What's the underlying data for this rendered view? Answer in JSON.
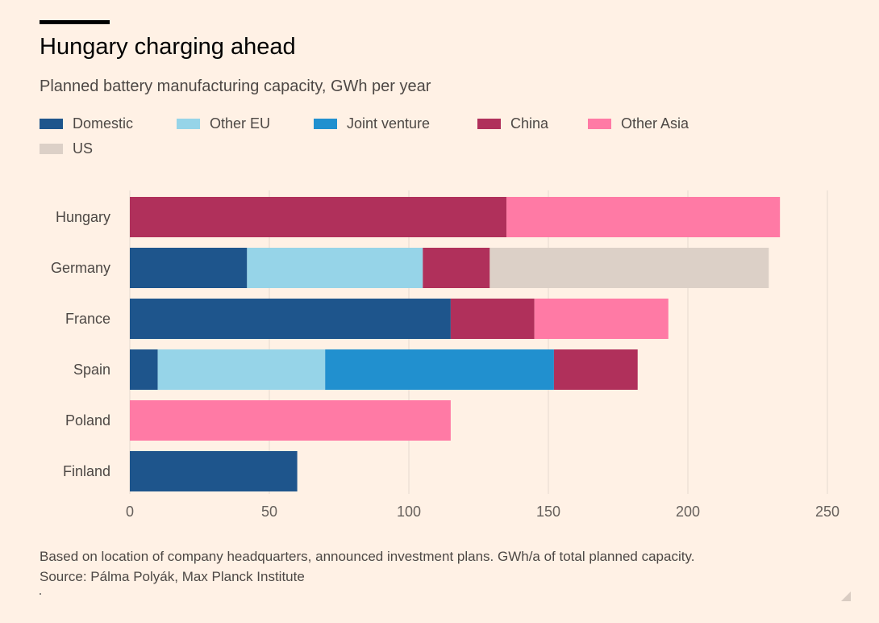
{
  "header": {
    "title": "Hungary charging ahead",
    "subtitle": "Planned battery manufacturing capacity, GWh per year"
  },
  "colors": {
    "background": "#fff1e5",
    "grid": "#e6d9ce",
    "axis_text": "#66605c"
  },
  "chart_data": {
    "type": "bar",
    "orientation": "horizontal",
    "stacked": true,
    "title": "Hungary charging ahead",
    "subtitle": "Planned battery manufacturing capacity, GWh per year",
    "categories": [
      "Hungary",
      "Germany",
      "France",
      "Spain",
      "Poland",
      "Finland"
    ],
    "series": [
      {
        "name": "Domestic",
        "color": "#1e558c",
        "values": [
          0,
          42,
          115,
          10,
          0,
          60
        ]
      },
      {
        "name": "Other EU",
        "color": "#96d4e8",
        "values": [
          0,
          63,
          0,
          60,
          0,
          0
        ]
      },
      {
        "name": "Joint venture",
        "color": "#2190cf",
        "values": [
          0,
          0,
          0,
          82,
          0,
          0
        ]
      },
      {
        "name": "China",
        "color": "#b0305b",
        "values": [
          135,
          24,
          30,
          30,
          0,
          0
        ]
      },
      {
        "name": "Other Asia",
        "color": "#ff7aa5",
        "values": [
          98,
          0,
          48,
          0,
          115,
          0
        ]
      },
      {
        "name": "US",
        "color": "#dcd0c7",
        "values": [
          0,
          100,
          0,
          0,
          0,
          0
        ]
      }
    ],
    "x_ticks": [
      0,
      50,
      100,
      150,
      200,
      250
    ],
    "xlim": [
      0,
      250
    ],
    "xlabel": "",
    "ylabel": "",
    "grid": true,
    "legend_position": "top"
  },
  "footnote": {
    "line1": "Based on location of company headquarters, announced investment plans. GWh/a of total planned capacity.",
    "line2": "Source: Pálma Polyák, Max Planck Institute"
  }
}
